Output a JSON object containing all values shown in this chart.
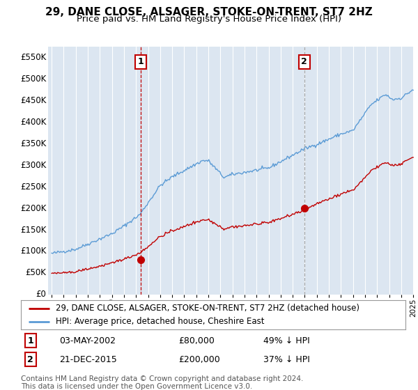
{
  "title": "29, DANE CLOSE, ALSAGER, STOKE-ON-TRENT, ST7 2HZ",
  "subtitle": "Price paid vs. HM Land Registry's House Price Index (HPI)",
  "ylim": [
    0,
    575000
  ],
  "yticks": [
    0,
    50000,
    100000,
    150000,
    200000,
    250000,
    300000,
    350000,
    400000,
    450000,
    500000,
    550000
  ],
  "ytick_labels": [
    "£0",
    "£50K",
    "£100K",
    "£150K",
    "£200K",
    "£250K",
    "£300K",
    "£350K",
    "£400K",
    "£450K",
    "£500K",
    "£550K"
  ],
  "hpi_color": "#5b9bd5",
  "price_color": "#c00000",
  "dashed_line_color_1": "#c00000",
  "dashed_line_color_2": "#aaaaaa",
  "background_color": "#dce6f1",
  "fig_bg_color": "#ffffff",
  "grid_color": "#ffffff",
  "sale1_date": "03-MAY-2002",
  "sale1_price": 80000,
  "sale1_year": 2002.37,
  "sale2_date": "21-DEC-2015",
  "sale2_price": 200000,
  "sale2_year": 2015.96,
  "legend_line1": "29, DANE CLOSE, ALSAGER, STOKE-ON-TRENT, ST7 2HZ (detached house)",
  "legend_line2": "HPI: Average price, detached house, Cheshire East",
  "sale1_pct": "49% ↓ HPI",
  "sale2_pct": "37% ↓ HPI",
  "footer": "Contains HM Land Registry data © Crown copyright and database right 2024.\nThis data is licensed under the Open Government Licence v3.0.",
  "start_year": 1995,
  "end_year": 2025
}
